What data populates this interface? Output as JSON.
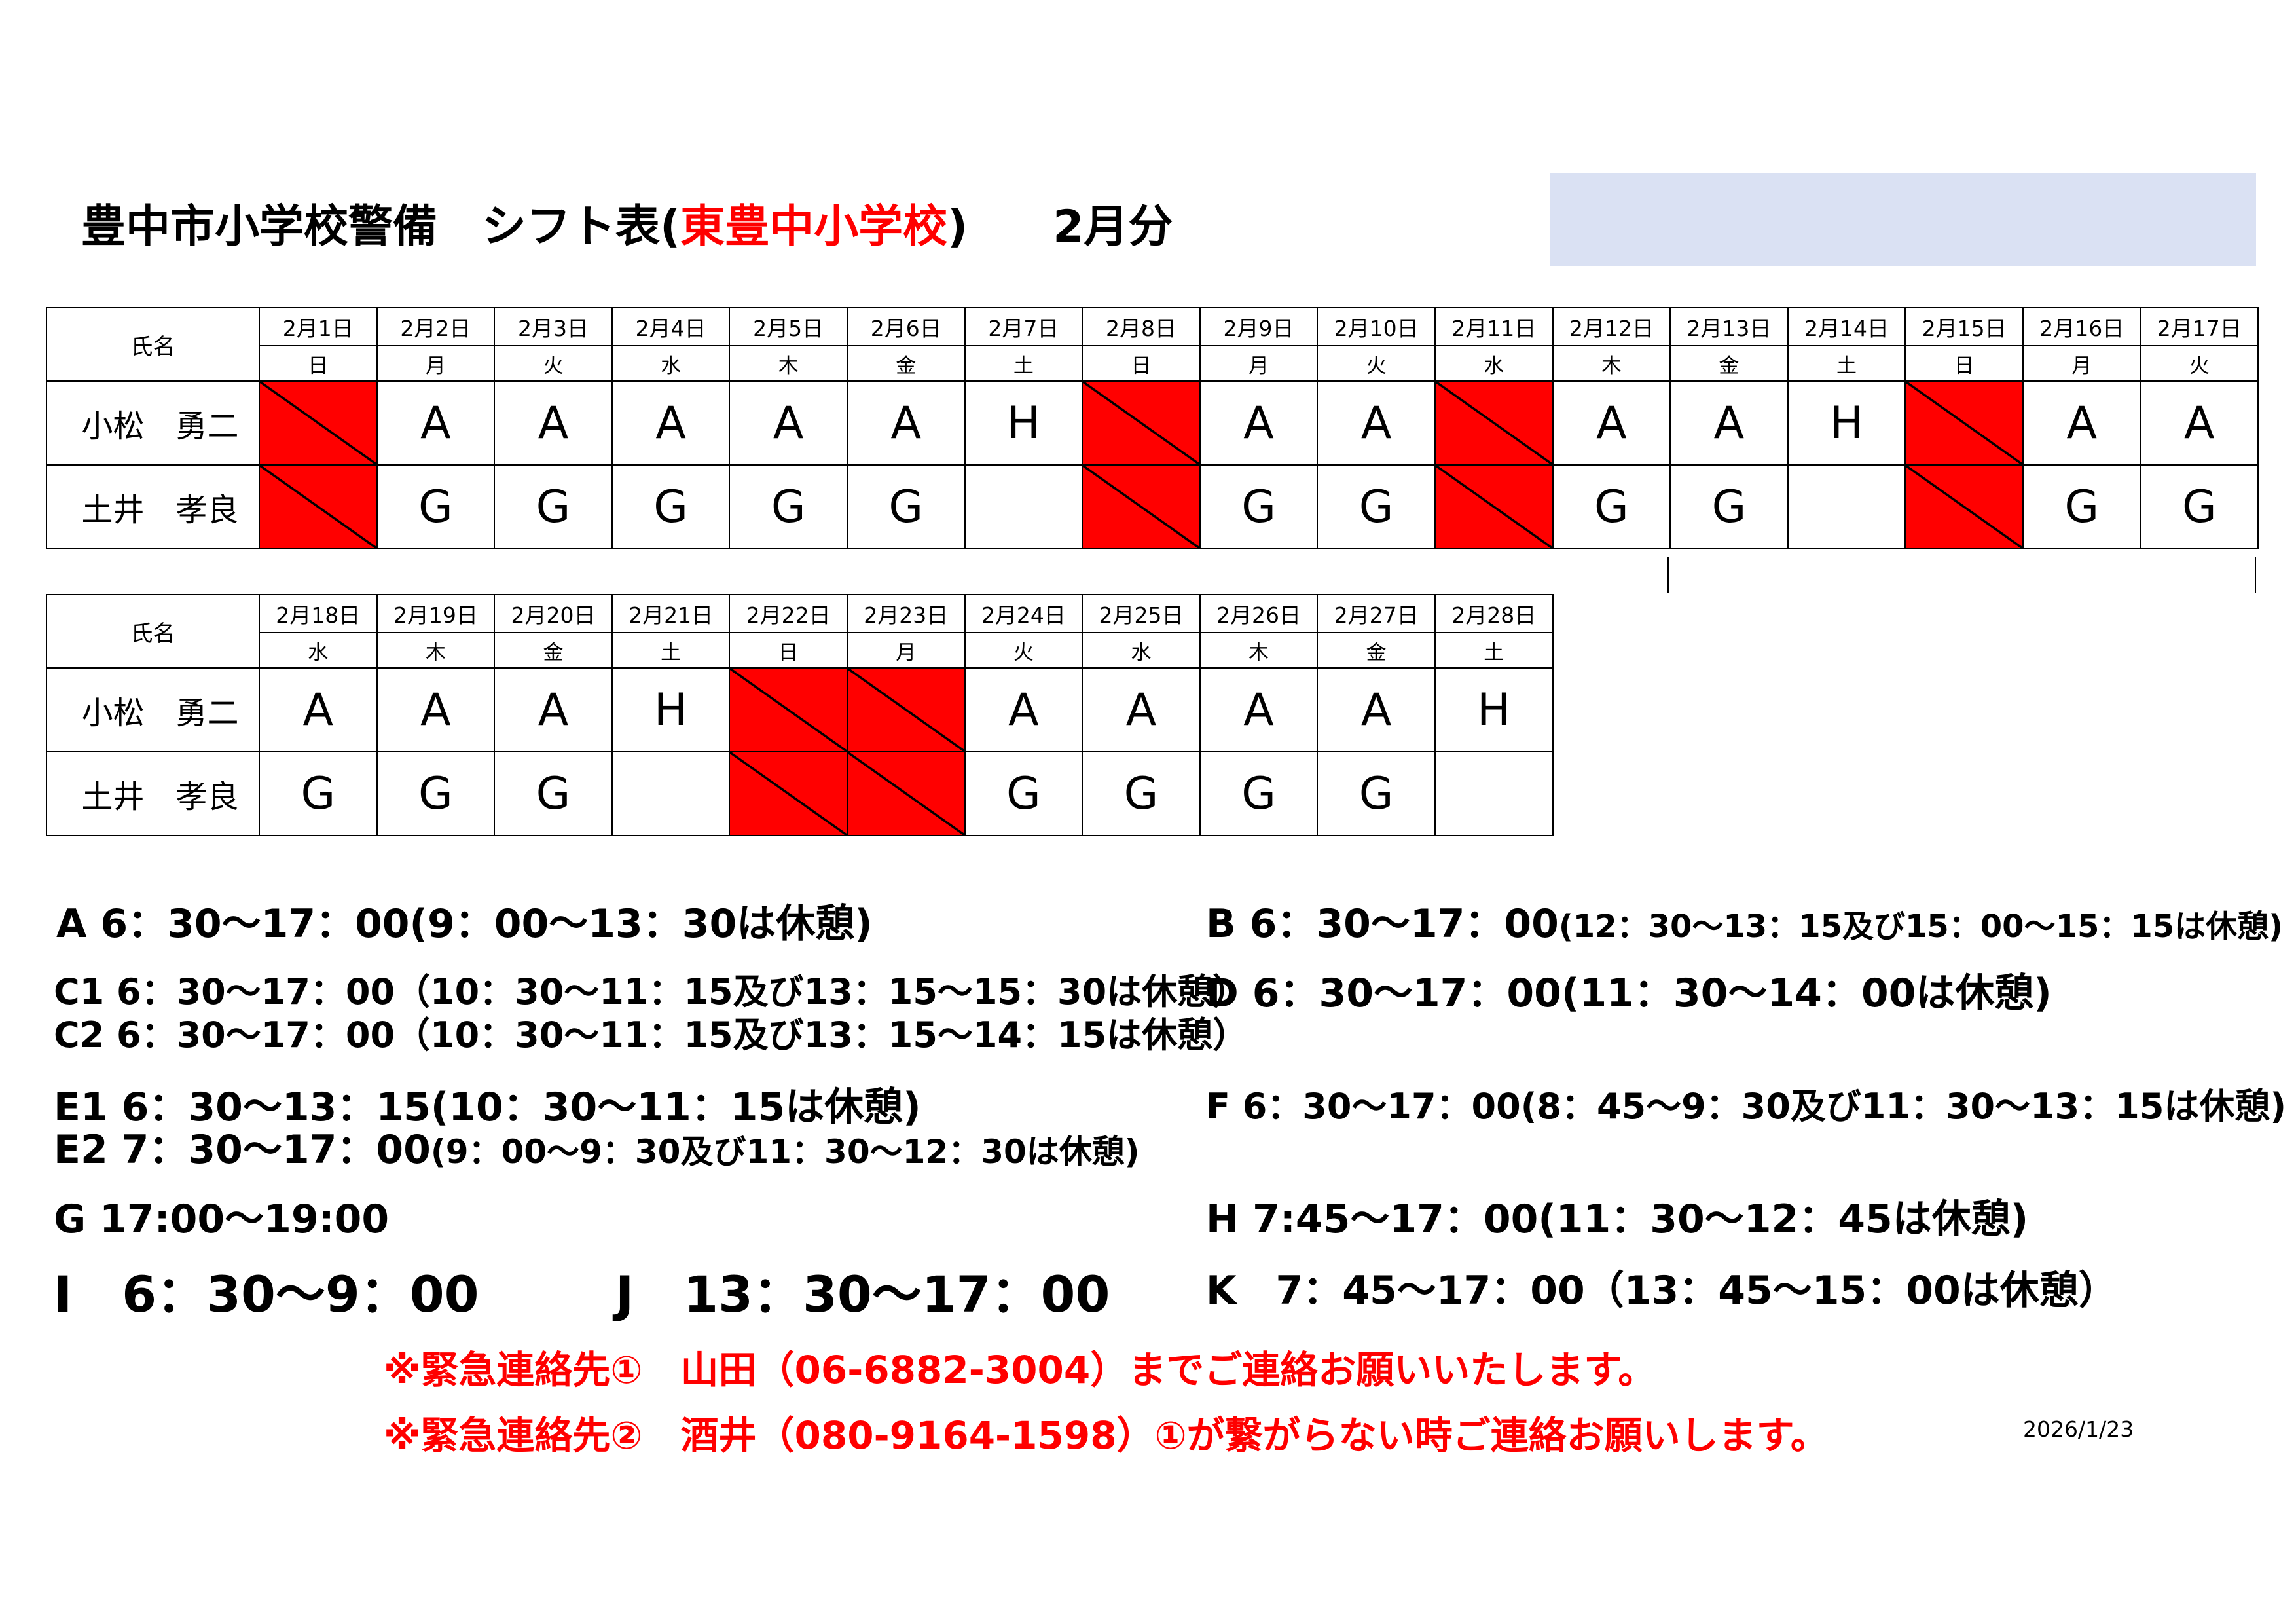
{
  "header": {
    "title_prefix": "豊中市小学校警備　シフト表(",
    "school": "東豊中小学校",
    "title_suffix": ")",
    "month": "2月分"
  },
  "colors": {
    "off_day": "#ff0000",
    "header_box": "#dae1f3",
    "emphasis": "#ff0000"
  },
  "name_header": "氏名",
  "staff": [
    "小松　勇二",
    "土井　孝良"
  ],
  "table1": {
    "dates": [
      "2月1日",
      "2月2日",
      "2月3日",
      "2月4日",
      "2月5日",
      "2月6日",
      "2月7日",
      "2月8日",
      "2月9日",
      "2月10日",
      "2月11日",
      "2月12日",
      "2月13日",
      "2月14日",
      "2月15日",
      "2月16日",
      "2月17日"
    ],
    "weekdays": [
      "日",
      "月",
      "火",
      "水",
      "木",
      "金",
      "土",
      "日",
      "月",
      "火",
      "水",
      "木",
      "金",
      "土",
      "日",
      "月",
      "火"
    ],
    "rows": [
      [
        "X",
        "A",
        "A",
        "A",
        "A",
        "A",
        "H",
        "X",
        "A",
        "A",
        "X",
        "A",
        "A",
        "H",
        "X",
        "A",
        "A"
      ],
      [
        "X",
        "G",
        "G",
        "G",
        "G",
        "G",
        "",
        "X",
        "G",
        "G",
        "X",
        "G",
        "G",
        "",
        "X",
        "G",
        "G"
      ]
    ]
  },
  "table2": {
    "dates": [
      "2月18日",
      "2月19日",
      "2月20日",
      "2月21日",
      "2月22日",
      "2月23日",
      "2月24日",
      "2月25日",
      "2月26日",
      "2月27日",
      "2月28日"
    ],
    "weekdays": [
      "水",
      "木",
      "金",
      "土",
      "日",
      "月",
      "火",
      "水",
      "木",
      "金",
      "土"
    ],
    "rows": [
      [
        "A",
        "A",
        "A",
        "H",
        "X",
        "X",
        "A",
        "A",
        "A",
        "A",
        "H"
      ],
      [
        "G",
        "G",
        "G",
        "",
        "X",
        "X",
        "G",
        "G",
        "G",
        "G",
        ""
      ]
    ]
  },
  "legend": {
    "A": "A 6：30～17：00(9：00～13：30は休憩)",
    "B": "B 6：30～17：00",
    "B_note": "(12：30～13：15及び15：00～15：15は休憩)",
    "C1": "C1 6：30～17：00（10：30～11：15及び13：15～15：30は休憩）",
    "C2": "C2 6：30～17：00（10：30～11：15及び13：15～14：15は休憩）",
    "D": "D 6：30～17：00(11：30～14：00は休憩)",
    "E1": "E1 6：30～13：15(10：30～11：15は休憩)",
    "E2": "E2 7：30～17：00",
    "E2_note": "(9：00～9：30及び11：30～12：30は休憩)",
    "F": "F 6：30～17：00(8：45～9：30及び11：30～13：15は休憩)",
    "G": "G 17:00～19:00",
    "H": "H 7:45～17：00(11：30～12：45は休憩)",
    "I": "I　6：30～9：00",
    "J": "J　13：30～17：00",
    "K": "K　7：45～17：00（13：45～15：00は休憩）"
  },
  "contacts": [
    "※緊急連絡先①　山田（06-6882-3004）までご連絡お願いいたします。",
    "※緊急連絡先②　酒井（080-9164-1598）①が繋がらない時ご連絡お願いします。"
  ],
  "issued_date": "2026/1/23"
}
